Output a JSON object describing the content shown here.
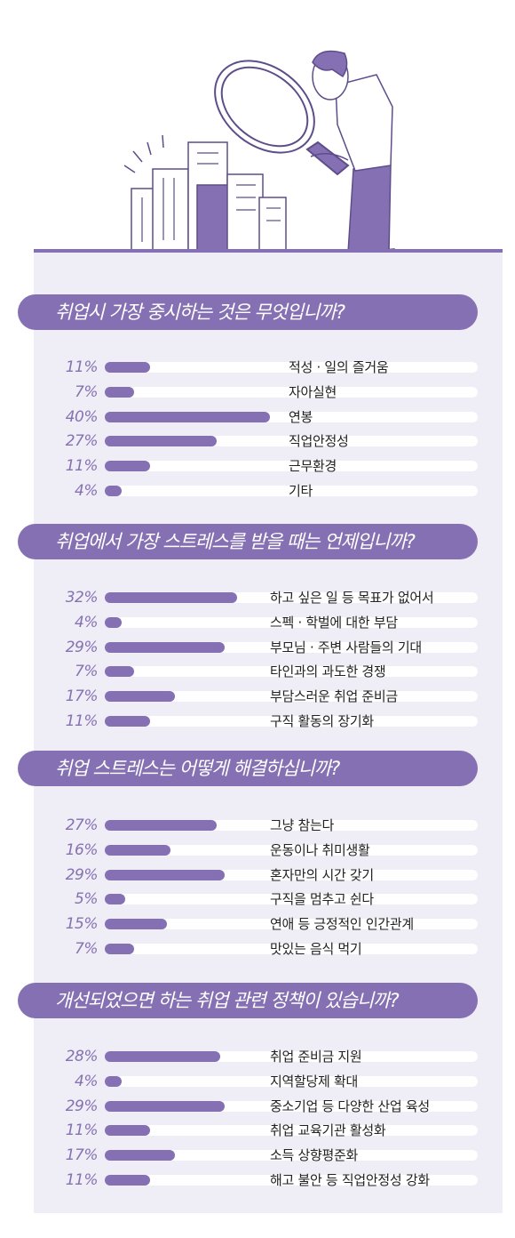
{
  "chart_data": [
    {
      "type": "bar",
      "title": "취업시 가장 중시하는 것은 무엇입니까?",
      "categories": [
        "적성 · 일의 즐거움",
        "자아실현",
        "연봉",
        "직업안정성",
        "근무환경",
        "기타"
      ],
      "values": [
        11,
        7,
        40,
        27,
        11,
        4
      ],
      "labels": [
        "11%",
        "7%",
        "40%",
        "27%",
        "11%",
        "4%"
      ],
      "orientation": "horizontal",
      "ylim": [
        0,
        100
      ]
    },
    {
      "type": "bar",
      "title": "취업에서 가장 스트레스를 받을 때는 언제입니까?",
      "categories": [
        "하고 싶은 일 등 목표가 없어서",
        "스펙 · 학벌에 대한 부담",
        "부모님 · 주변 사람들의 기대",
        "타인과의 과도한 경쟁",
        "부담스러운 취업 준비금",
        "구직 활동의 장기화"
      ],
      "values": [
        32,
        4,
        29,
        7,
        17,
        11
      ],
      "labels": [
        "32%",
        "4%",
        "29%",
        "7%",
        "17%",
        "11%"
      ],
      "orientation": "horizontal",
      "ylim": [
        0,
        100
      ]
    },
    {
      "type": "bar",
      "title": "취업 스트레스는 어떻게 해결하십니까?",
      "categories": [
        "그냥 참는다",
        "운동이나 취미생활",
        "혼자만의 시간 갖기",
        "구직을 멈추고 쉰다",
        "연애 등 긍정적인 인간관계",
        "맛있는 음식 먹기"
      ],
      "values": [
        27,
        16,
        29,
        5,
        15,
        7
      ],
      "labels": [
        "27%",
        "16%",
        "29%",
        "5%",
        "15%",
        "7%"
      ],
      "orientation": "horizontal",
      "ylim": [
        0,
        100
      ]
    },
    {
      "type": "bar",
      "title": "개선되었으면 하는 취업 관련 정책이 있습니까?",
      "categories": [
        "취업 준비금 지원",
        "지역할당제 확대",
        "중소기업 등 다양한 산업 육성",
        "취업 교육기관 활성화",
        "소득 상향평준화",
        "해고 불안 등 직업안정성 강화"
      ],
      "values": [
        28,
        4,
        29,
        11,
        17,
        11
      ],
      "labels": [
        "28%",
        "4%",
        "29%",
        "11%",
        "17%",
        "11%"
      ],
      "orientation": "horizontal",
      "ylim": [
        0,
        100
      ]
    }
  ],
  "colors": {
    "accent": "#8470b2",
    "panel": "#efedf6",
    "track": "#ffffff",
    "percent_text": "#8672b2",
    "label_text": "#222222"
  },
  "illustration": {
    "subject": "person-with-magnifying-glass-over-city-buildings-icon"
  }
}
